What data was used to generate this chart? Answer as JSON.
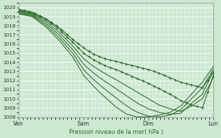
{
  "background_color": "#cce8d0",
  "line_color": "#2d6a2d",
  "xlabel": "Pression niveau de la mer( hPa )",
  "ylim": [
    1008,
    1020.5
  ],
  "yticks": [
    1008,
    1009,
    1010,
    1011,
    1012,
    1013,
    1014,
    1015,
    1016,
    1017,
    1018,
    1019,
    1020
  ],
  "xtick_labels": [
    "Ven",
    "Sam",
    "Dim",
    "Lun"
  ],
  "xtick_positions": [
    0,
    48,
    96,
    144
  ],
  "lines": [
    {
      "keypoints_x": [
        0,
        10,
        20,
        30,
        40,
        48,
        54,
        60,
        66,
        72,
        80,
        88,
        96,
        104,
        112,
        120,
        128,
        136,
        144
      ],
      "keypoints_y": [
        1019.8,
        1019.5,
        1018.8,
        1017.8,
        1016.5,
        1015.6,
        1015.0,
        1014.6,
        1014.3,
        1014.1,
        1013.8,
        1013.5,
        1013.2,
        1012.8,
        1012.3,
        1011.8,
        1011.5,
        1011.2,
        1012.8
      ],
      "marker": true
    },
    {
      "keypoints_x": [
        0,
        10,
        20,
        30,
        40,
        48,
        54,
        60,
        66,
        72,
        80,
        88,
        96,
        104,
        112,
        120,
        128,
        136,
        144
      ],
      "keypoints_y": [
        1019.7,
        1019.4,
        1018.7,
        1017.6,
        1016.2,
        1015.0,
        1014.4,
        1013.9,
        1013.5,
        1013.2,
        1012.7,
        1012.2,
        1011.7,
        1011.1,
        1010.5,
        1009.8,
        1009.3,
        1009.0,
        1012.5
      ],
      "marker": true
    },
    {
      "keypoints_x": [
        0,
        10,
        20,
        30,
        40,
        48,
        54,
        60,
        66,
        72,
        80,
        88,
        96,
        104,
        112,
        120,
        128,
        136,
        144
      ],
      "keypoints_y": [
        1019.6,
        1019.3,
        1018.5,
        1017.3,
        1015.8,
        1014.4,
        1013.7,
        1013.1,
        1012.6,
        1012.1,
        1011.4,
        1010.7,
        1010.0,
        1009.3,
        1008.9,
        1008.6,
        1009.2,
        1010.0,
        1012.3
      ],
      "marker": false
    },
    {
      "keypoints_x": [
        0,
        10,
        20,
        30,
        40,
        48,
        54,
        60,
        66,
        72,
        80,
        88,
        96,
        104,
        112,
        120,
        128,
        136,
        144
      ],
      "keypoints_y": [
        1019.5,
        1019.2,
        1018.3,
        1017.0,
        1015.4,
        1013.8,
        1013.0,
        1012.3,
        1011.7,
        1011.1,
        1010.3,
        1009.5,
        1008.9,
        1008.5,
        1008.3,
        1008.4,
        1009.5,
        1010.5,
        1013.0
      ],
      "marker": false
    },
    {
      "keypoints_x": [
        0,
        10,
        20,
        30,
        40,
        48,
        54,
        60,
        66,
        72,
        80,
        88,
        96,
        104,
        112,
        120,
        128,
        136,
        144
      ],
      "keypoints_y": [
        1019.4,
        1019.1,
        1018.1,
        1016.7,
        1015.0,
        1013.2,
        1012.3,
        1011.5,
        1010.8,
        1010.1,
        1009.2,
        1008.5,
        1008.1,
        1008.0,
        1008.2,
        1008.8,
        1010.0,
        1011.2,
        1013.2
      ],
      "marker": false
    },
    {
      "keypoints_x": [
        0,
        10,
        20,
        30,
        40,
        48,
        54,
        60,
        66,
        72,
        80,
        88,
        96,
        104,
        112,
        120,
        128,
        136,
        144
      ],
      "keypoints_y": [
        1019.3,
        1019.0,
        1017.9,
        1016.4,
        1014.6,
        1012.6,
        1011.6,
        1010.7,
        1009.9,
        1009.1,
        1008.3,
        1008.0,
        1008.0,
        1008.2,
        1008.5,
        1009.2,
        1010.5,
        1011.8,
        1013.5
      ],
      "marker": false
    }
  ]
}
